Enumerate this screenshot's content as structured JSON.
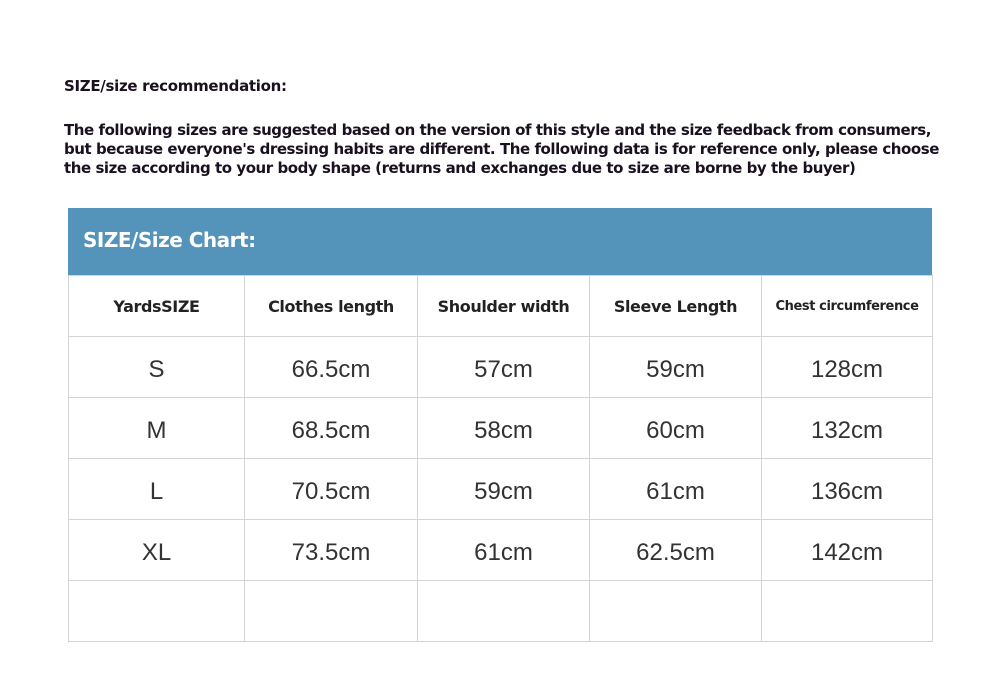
{
  "title": "SIZE/size recommendation:",
  "intro": "The following sizes are suggested based on the version of this style and the size feedback from consumers, but because everyone's dressing habits are different. The following data is for reference only, please choose the size according to your body shape (returns and exchanges due to size are borne by the buyer)",
  "table": {
    "banner": "SIZE/Size Chart:",
    "banner_color": "#5494bb",
    "headers": [
      "YardsSIZE",
      "Clothes length",
      "Shoulder width",
      "Sleeve Length",
      "Chest circumference"
    ],
    "rows": [
      [
        "S",
        "66.5cm",
        "57cm",
        "59cm",
        "128cm"
      ],
      [
        "M",
        "68.5cm",
        "58cm",
        "60cm",
        "132cm"
      ],
      [
        "L",
        "70.5cm",
        "59cm",
        "61cm",
        "136cm"
      ],
      [
        "XL",
        "73.5cm",
        "61cm",
        "62.5cm",
        "142cm"
      ],
      [
        "",
        "",
        "",
        "",
        ""
      ]
    ]
  }
}
